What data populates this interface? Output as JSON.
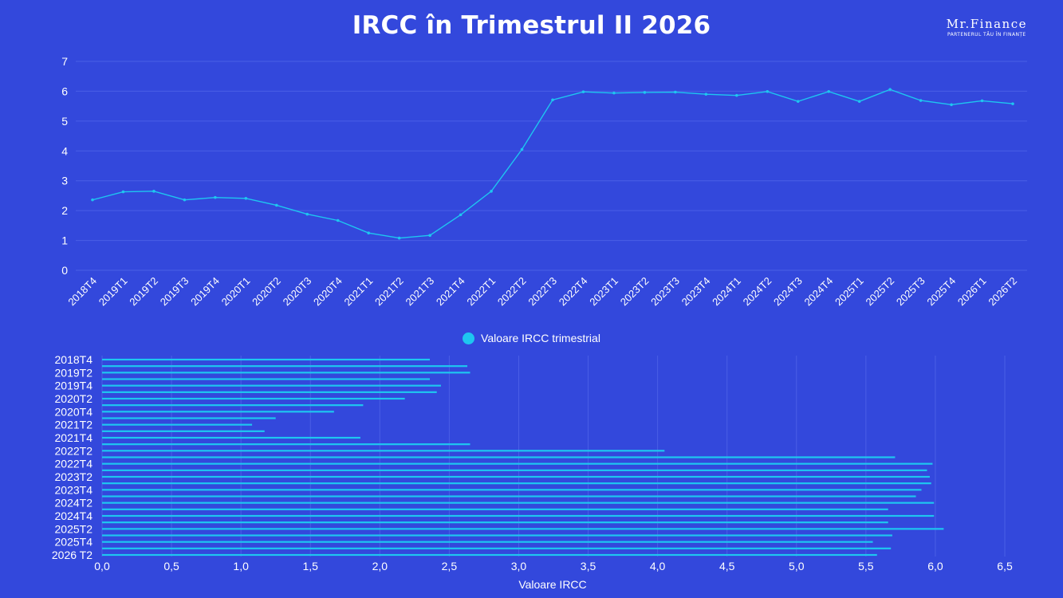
{
  "title": "IRCC în Trimestrul II 2026",
  "brand": {
    "name": "Mr.Finance",
    "tagline": "PARTENERUL TĂU ÎN FINANȚE",
    "icon": "brand-logo"
  },
  "colors": {
    "background": "#3348dc",
    "series": "#1ec6f0",
    "text": "#ffffff",
    "grid": "#4a5fe6"
  },
  "legend": {
    "label": "Valoare IRCC trimestrial",
    "placement": "between-charts"
  },
  "chart_data": [
    {
      "type": "line",
      "x": [
        "2018T4",
        "2019T1",
        "2019T2",
        "2019T3",
        "2019T4",
        "2020T1",
        "2020T2",
        "2020T3",
        "2020T4",
        "2021T1",
        "2021T2",
        "2021T3",
        "2021T4",
        "2022T1",
        "2022T2",
        "2022T3",
        "2022T4",
        "2023T1",
        "2023T2",
        "2023T3",
        "2023T4",
        "2024T1",
        "2024T2",
        "2024T3",
        "2024T4",
        "2025T1",
        "2025T2",
        "2025T3",
        "2025T4",
        "2026T1",
        "2026T2"
      ],
      "series": [
        {
          "name": "Valoare IRCC trimestrial",
          "values": [
            2.36,
            2.63,
            2.65,
            2.36,
            2.44,
            2.41,
            2.18,
            1.88,
            1.67,
            1.25,
            1.08,
            1.17,
            1.86,
            2.65,
            4.05,
            5.71,
            5.98,
            5.94,
            5.96,
            5.97,
            5.9,
            5.86,
            5.99,
            5.66,
            5.99,
            5.66,
            6.06,
            5.69,
            5.55,
            5.68,
            5.58
          ]
        }
      ],
      "ylim": [
        0,
        7
      ],
      "yticks": [
        "0",
        "1",
        "2",
        "3",
        "4",
        "5",
        "6",
        "7"
      ],
      "grid": true
    },
    {
      "type": "bar",
      "orientation": "horizontal",
      "categories": [
        "2018T4",
        "2019T1",
        "2019T2",
        "2019T3",
        "2019T4",
        "2020T1",
        "2020T2",
        "2020T3",
        "2020T4",
        "2021T1",
        "2021T2",
        "2021T3",
        "2021T4",
        "2022T1",
        "2022T2",
        "2022T3",
        "2022T4",
        "2023T1",
        "2023T2",
        "2023T3",
        "2023T4",
        "2024T1",
        "2024T2",
        "2024T3",
        "2024T4",
        "2025T1",
        "2025T2",
        "2025T3",
        "2025T4",
        "2026T1",
        "2026 T2"
      ],
      "visible_category_labels": [
        "2018T4",
        "2019T2",
        "2019T4",
        "2020T2",
        "2020T4",
        "2021T2",
        "2021T4",
        "2022T2",
        "2022T4",
        "2023T2",
        "2023T4",
        "2024T2",
        "2024T4",
        "2025T2",
        "2025T4",
        "2026 T2"
      ],
      "values": [
        2.36,
        2.63,
        2.65,
        2.36,
        2.44,
        2.41,
        2.18,
        1.88,
        1.67,
        1.25,
        1.08,
        1.17,
        1.86,
        2.65,
        4.05,
        5.71,
        5.98,
        5.94,
        5.96,
        5.97,
        5.9,
        5.86,
        5.99,
        5.66,
        5.99,
        5.66,
        6.06,
        5.69,
        5.55,
        5.68,
        5.58
      ],
      "xlim": [
        0,
        6.5
      ],
      "xticks": [
        "0,0",
        "0,5",
        "1,0",
        "1,5",
        "2,0",
        "2,5",
        "3,0",
        "3,5",
        "4,0",
        "4,5",
        "5,0",
        "5,5",
        "6,0",
        "6,5"
      ],
      "xlabel": "Valoare IRCC",
      "grid": true
    }
  ]
}
